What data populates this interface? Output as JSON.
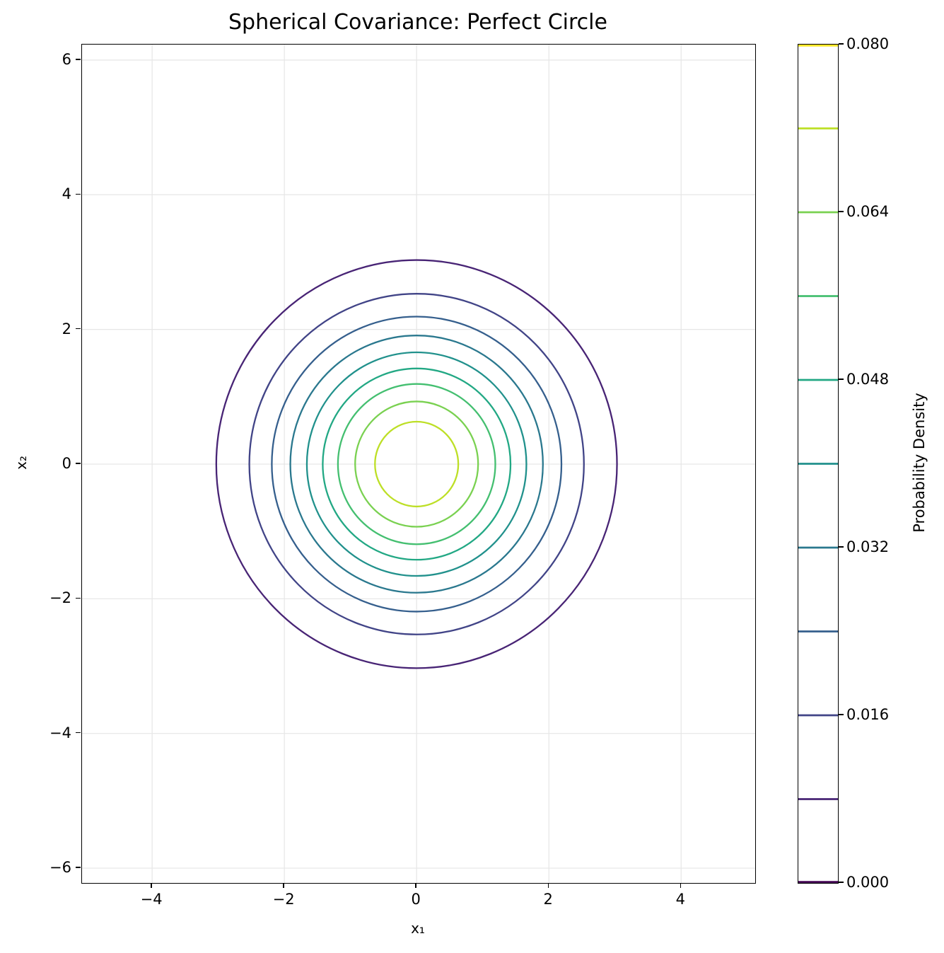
{
  "chart_data": {
    "type": "contour",
    "title": "Spherical Covariance: Perfect Circle",
    "xlabel": "x₁",
    "ylabel": "x₂",
    "xlim": [
      -5.06,
      5.12
    ],
    "ylim": [
      -6.22,
      6.23
    ],
    "xticks": {
      "values": [
        -4,
        -2,
        0,
        2,
        4
      ],
      "labels": [
        "−4",
        "−2",
        "0",
        "2",
        "4"
      ]
    },
    "yticks": {
      "values": [
        -6,
        -4,
        -2,
        0,
        2,
        4,
        6
      ],
      "labels": [
        "−6",
        "−4",
        "−2",
        "0",
        "2",
        "4",
        "6"
      ]
    },
    "grid": true,
    "grid_color": "#e6e6e6",
    "colormap": "viridis",
    "center": [
      0,
      0
    ],
    "contours": [
      {
        "level": 0.008,
        "radius": 3.03,
        "color": "#482475"
      },
      {
        "level": 0.016,
        "radius": 2.53,
        "color": "#414487"
      },
      {
        "level": 0.024,
        "radius": 2.19,
        "color": "#355f8d"
      },
      {
        "level": 0.032,
        "radius": 1.91,
        "color": "#2a788e"
      },
      {
        "level": 0.04,
        "radius": 1.66,
        "color": "#21918c"
      },
      {
        "level": 0.048,
        "radius": 1.42,
        "color": "#22a884"
      },
      {
        "level": 0.056,
        "radius": 1.19,
        "color": "#44bf70"
      },
      {
        "level": 0.064,
        "radius": 0.93,
        "color": "#7ad151"
      },
      {
        "level": 0.072,
        "radius": 0.63,
        "color": "#bddf26"
      }
    ],
    "colorbar": {
      "label": "Probability Density",
      "range": [
        0.0,
        0.08
      ],
      "tick_values": [
        0.0,
        0.016,
        0.032,
        0.048,
        0.064,
        0.08
      ],
      "tick_labels": [
        "0.000",
        "0.016",
        "0.032",
        "0.048",
        "0.064",
        "0.080"
      ],
      "lines": [
        {
          "level": 0.0,
          "color": "#440154"
        },
        {
          "level": 0.008,
          "color": "#482475"
        },
        {
          "level": 0.016,
          "color": "#414487"
        },
        {
          "level": 0.024,
          "color": "#355f8d"
        },
        {
          "level": 0.032,
          "color": "#2a788e"
        },
        {
          "level": 0.04,
          "color": "#21918c"
        },
        {
          "level": 0.048,
          "color": "#22a884"
        },
        {
          "level": 0.056,
          "color": "#44bf70"
        },
        {
          "level": 0.064,
          "color": "#7ad151"
        },
        {
          "level": 0.072,
          "color": "#bddf26"
        },
        {
          "level": 0.08,
          "color": "#fde725"
        }
      ]
    }
  }
}
